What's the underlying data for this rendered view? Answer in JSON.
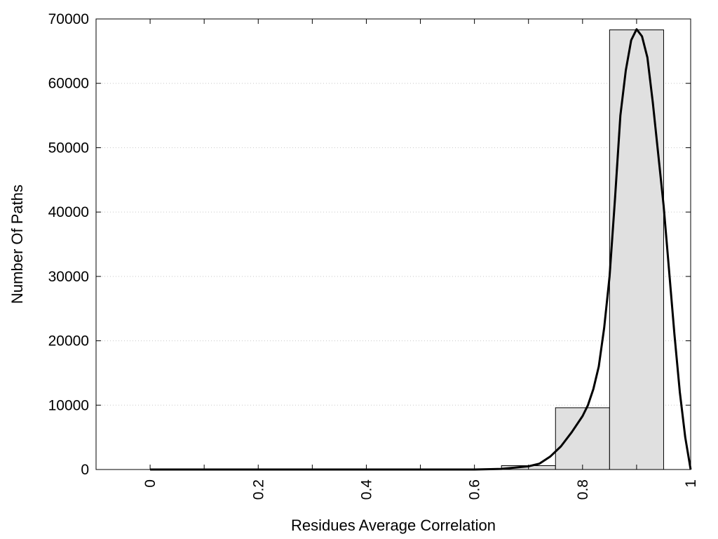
{
  "chart_data": {
    "type": "bar",
    "title": "",
    "xlabel": "Residues Average Correlation",
    "ylabel": "Number Of Paths",
    "xlim": [
      -0.1,
      1.0
    ],
    "ylim": [
      0,
      70000
    ],
    "xticks": [
      0,
      0.2,
      0.4,
      0.6,
      0.8,
      1
    ],
    "xtick_labels": [
      "0",
      "0.2",
      "0.4",
      "0.6",
      "0.8",
      "1"
    ],
    "xminor_ticks": [
      0.1,
      0.3,
      0.5,
      0.7,
      0.9
    ],
    "yticks": [
      0,
      10000,
      20000,
      30000,
      40000,
      50000,
      60000,
      70000
    ],
    "ytick_labels": [
      "0",
      "10000",
      "20000",
      "30000",
      "40000",
      "50000",
      "60000",
      "70000"
    ],
    "grid": "horizontal-dotted",
    "bar_color": "#e0e0e0",
    "bins": [
      {
        "from": 0.65,
        "to": 0.75,
        "value": 600
      },
      {
        "from": 0.75,
        "to": 0.85,
        "value": 9600
      },
      {
        "from": 0.85,
        "to": 0.95,
        "value": 68300
      }
    ],
    "curve": {
      "type": "line",
      "color": "#000000",
      "points": [
        [
          0,
          0
        ],
        [
          0.1,
          0
        ],
        [
          0.2,
          0
        ],
        [
          0.3,
          0
        ],
        [
          0.4,
          0
        ],
        [
          0.5,
          0
        ],
        [
          0.6,
          0
        ],
        [
          0.65,
          100
        ],
        [
          0.7,
          500
        ],
        [
          0.72,
          900
        ],
        [
          0.74,
          2000
        ],
        [
          0.76,
          3600
        ],
        [
          0.78,
          5800
        ],
        [
          0.8,
          8300
        ],
        [
          0.81,
          10000
        ],
        [
          0.82,
          12500
        ],
        [
          0.83,
          16000
        ],
        [
          0.84,
          22000
        ],
        [
          0.85,
          30000
        ],
        [
          0.86,
          42000
        ],
        [
          0.87,
          55000
        ],
        [
          0.88,
          62000
        ],
        [
          0.89,
          66700
        ],
        [
          0.9,
          68400
        ],
        [
          0.91,
          67300
        ],
        [
          0.92,
          64000
        ],
        [
          0.93,
          57000
        ],
        [
          0.94,
          49000
        ],
        [
          0.95,
          41000
        ],
        [
          0.96,
          31000
        ],
        [
          0.97,
          21000
        ],
        [
          0.98,
          12000
        ],
        [
          0.99,
          5000
        ],
        [
          1.0,
          0
        ]
      ]
    }
  }
}
